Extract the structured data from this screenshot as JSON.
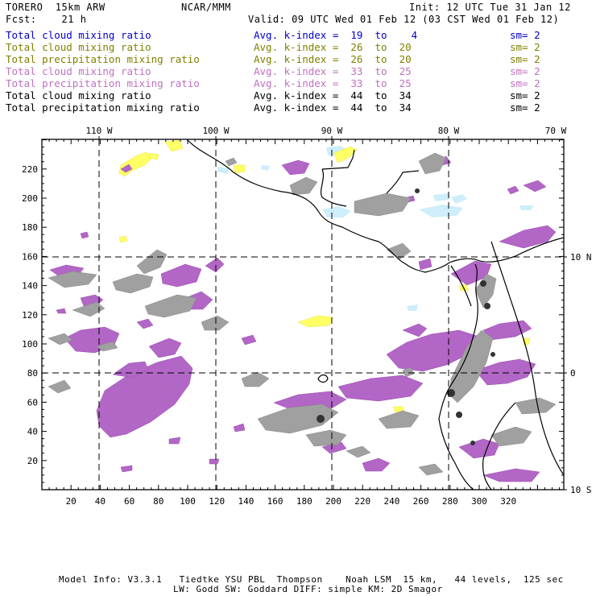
{
  "header": {
    "model": "TORERO  15km ARW",
    "center": "NCAR/MMM",
    "init": "Init: 12 UTC Tue 31 Jan 12",
    "fcst": "Fcst:    21 h",
    "valid": "Valid: 09 UTC Wed 01 Feb 12 (03 CST Wed 01 Feb 12)"
  },
  "legend": [
    {
      "field": "Total cloud mixing ratio",
      "index": "Avg. k-index =  19  to    4",
      "sm": "sm= 2",
      "color": "#0000cc"
    },
    {
      "field": "Total cloud mixing ratio",
      "index": "Avg. k-index =  26  to  20",
      "sm": "sm= 2",
      "color": "#808000"
    },
    {
      "field": "Total precipitation mixing ratio",
      "index": "Avg. k-index =  26  to  20",
      "sm": "sm= 2",
      "color": "#808000"
    },
    {
      "field": "Total cloud mixing ratio",
      "index": "Avg. k-index =  33  to  25",
      "sm": "sm= 2",
      "color": "#c070c0"
    },
    {
      "field": "Total precipitation mixing ratio",
      "index": "Avg. k-index =  33  to  25",
      "sm": "sm= 2",
      "color": "#c070c0"
    },
    {
      "field": "Total cloud mixing ratio",
      "index": "Avg. k-index =  44  to  34",
      "sm": "sm= 2",
      "color": "#000000"
    },
    {
      "field": "Total precipitation mixing ratio",
      "index": "Avg. k-index =  44  to  34",
      "sm": "sm= 2",
      "color": "#000000"
    }
  ],
  "axes": {
    "lon_labels": [
      "110 W",
      "100 W",
      "90 W",
      "80 W",
      "70 W"
    ],
    "lat_labels": [
      "10 N",
      "0",
      "10 S"
    ],
    "x_ticks": [
      "20",
      "40",
      "60",
      "80",
      "100",
      "120",
      "140",
      "160",
      "180",
      "200",
      "220",
      "240",
      "260",
      "280",
      "300",
      "320"
    ],
    "y_ticks": [
      "220",
      "200",
      "180",
      "160",
      "140",
      "120",
      "100",
      "80",
      "60",
      "40",
      "20"
    ]
  },
  "colors": {
    "light_blue": "#cdeefa",
    "yellow": "#ffff66",
    "purple": "#b266c6",
    "gray": "#999999",
    "dark": "#333333"
  },
  "footer": {
    "line1": "Model Info: V3.3.1   Tiedtke YSU PBL  Thompson    Noah LSM  15 km,   44 levels,  125 sec",
    "line2": "LW: Godd SW: Goddard DIFF: simple KM: 2D Smagor"
  }
}
